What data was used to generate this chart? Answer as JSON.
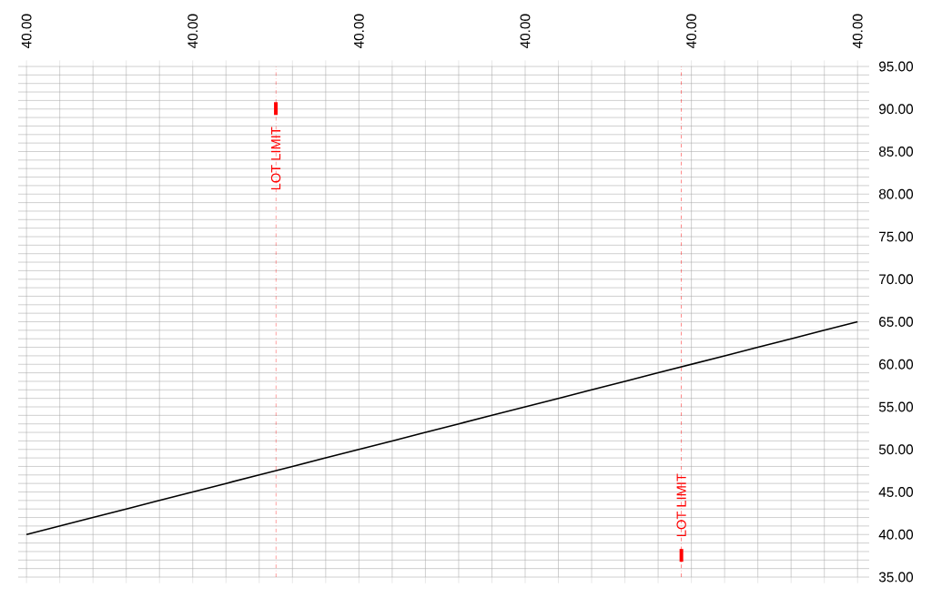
{
  "chart_data": {
    "type": "line",
    "categories": [
      "40.00",
      null,
      null,
      null,
      null,
      "40.00",
      null,
      null,
      null,
      null,
      "40.00",
      null,
      null,
      null,
      null,
      "40.00",
      null,
      null,
      null,
      null,
      "40.00",
      null,
      null,
      null,
      null,
      "40.00"
    ],
    "series": [
      {
        "color": "#000000",
        "values": [
          40,
          41,
          42,
          43,
          44,
          45,
          46,
          47,
          48,
          49,
          50,
          51,
          52,
          53,
          54,
          55,
          56,
          57,
          58,
          59,
          60,
          61,
          62,
          63,
          64,
          65
        ]
      }
    ],
    "ylim": [
      35,
      95
    ],
    "yticks": [
      {
        "value": 35,
        "label": "35.00"
      },
      {
        "value": 36,
        "label": null
      },
      {
        "value": 37,
        "label": null
      },
      {
        "value": 38,
        "label": null
      },
      {
        "value": 39,
        "label": null
      },
      {
        "value": 40,
        "label": "40.00"
      },
      {
        "value": 41,
        "label": null
      },
      {
        "value": 42,
        "label": null
      },
      {
        "value": 43,
        "label": null
      },
      {
        "value": 44,
        "label": null
      },
      {
        "value": 45,
        "label": "45.00"
      },
      {
        "value": 46,
        "label": null
      },
      {
        "value": 47,
        "label": null
      },
      {
        "value": 48,
        "label": null
      },
      {
        "value": 49,
        "label": null
      },
      {
        "value": 50,
        "label": "50.00"
      },
      {
        "value": 51,
        "label": null
      },
      {
        "value": 52,
        "label": null
      },
      {
        "value": 53,
        "label": null
      },
      {
        "value": 54,
        "label": null
      },
      {
        "value": 55,
        "label": "55.00"
      },
      {
        "value": 56,
        "label": null
      },
      {
        "value": 57,
        "label": null
      },
      {
        "value": 58,
        "label": null
      },
      {
        "value": 59,
        "label": null
      },
      {
        "value": 60,
        "label": "60.00"
      },
      {
        "value": 61,
        "label": null
      },
      {
        "value": 62,
        "label": null
      },
      {
        "value": 63,
        "label": null
      },
      {
        "value": 64,
        "label": null
      },
      {
        "value": 65,
        "label": "65.00"
      },
      {
        "value": 66,
        "label": null
      },
      {
        "value": 67,
        "label": null
      },
      {
        "value": 68,
        "label": null
      },
      {
        "value": 69,
        "label": null
      },
      {
        "value": 70,
        "label": "70.00"
      },
      {
        "value": 71,
        "label": null
      },
      {
        "value": 72,
        "label": null
      },
      {
        "value": 73,
        "label": null
      },
      {
        "value": 74,
        "label": null
      },
      {
        "value": 75,
        "label": "75.00"
      },
      {
        "value": 76,
        "label": null
      },
      {
        "value": 77,
        "label": null
      },
      {
        "value": 78,
        "label": null
      },
      {
        "value": 79,
        "label": null
      },
      {
        "value": 80,
        "label": "80.00"
      },
      {
        "value": 81,
        "label": null
      },
      {
        "value": 82,
        "label": null
      },
      {
        "value": 83,
        "label": null
      },
      {
        "value": 84,
        "label": null
      },
      {
        "value": 85,
        "label": "85.00"
      },
      {
        "value": 86,
        "label": null
      },
      {
        "value": 87,
        "label": null
      },
      {
        "value": 88,
        "label": null
      },
      {
        "value": 89,
        "label": null
      },
      {
        "value": 90,
        "label": "90.00"
      },
      {
        "value": 91,
        "label": null
      },
      {
        "value": 92,
        "label": null
      },
      {
        "value": 93,
        "label": null
      },
      {
        "value": 94,
        "label": null
      },
      {
        "value": 95,
        "label": "95.00"
      }
    ],
    "grid": true,
    "annotations": [
      "LOT LIMIT",
      "LOT LIMIT"
    ]
  }
}
